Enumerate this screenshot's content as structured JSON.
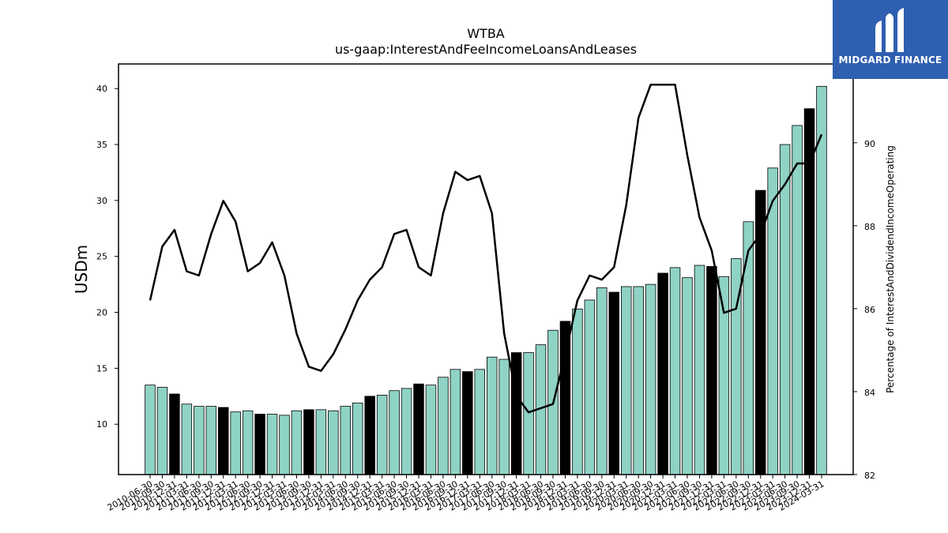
{
  "logo": {
    "text": "MIDGARD FINANCE",
    "icon": "midgard-logo-icon",
    "background": "#2f5fb0"
  },
  "chart_data": {
    "type": "bar",
    "title": "WTBA",
    "subtitle": "us-gaap:InterestAndFeeIncomeLoansAndLeases",
    "ylabel": "USDm",
    "y2label": "Percentage of InterestAndDividendIncomeOperating",
    "ylim": [
      5.5,
      42.2
    ],
    "y2lim": [
      82,
      91.9
    ],
    "yticks": [
      10,
      15,
      20,
      25,
      30,
      35,
      40
    ],
    "y2ticks": [
      82,
      84,
      86,
      88,
      90
    ],
    "grid": false,
    "colors": {
      "bar": "#8fd3c5",
      "bar_highlight": "#000000",
      "line": "#000000"
    },
    "categories": [
      "2010-06-30",
      "2010-09-30",
      "2010-12-31",
      "2011-03-31",
      "2011-06-30",
      "2011-09-30",
      "2011-12-31",
      "2012-03-31",
      "2012-06-30",
      "2012-09-30",
      "2012-12-31",
      "2013-03-31",
      "2013-06-30",
      "2013-09-30",
      "2013-12-31",
      "2014-03-31",
      "2014-06-30",
      "2014-09-30",
      "2014-12-31",
      "2015-03-31",
      "2015-06-30",
      "2015-09-30",
      "2015-12-31",
      "2016-03-31",
      "2016-06-30",
      "2016-09-30",
      "2016-12-31",
      "2017-03-31",
      "2017-06-30",
      "2017-09-30",
      "2017-12-31",
      "2018-03-31",
      "2018-06-30",
      "2018-09-30",
      "2018-12-31",
      "2019-03-31",
      "2019-06-30",
      "2019-09-30",
      "2019-12-31",
      "2020-03-31",
      "2020-06-30",
      "2020-09-30",
      "2020-12-31",
      "2021-03-31",
      "2021-06-30",
      "2021-09-30",
      "2021-12-31",
      "2022-03-31",
      "2022-06-30",
      "2022-09-30",
      "2022-12-31",
      "2023-03-31",
      "2023-06-30",
      "2023-09-30",
      "2023-12-31",
      "2024-03-31"
    ],
    "xtick_labels": [
      "2010-06-30",
      "2010-09-30",
      "2010-12-31",
      "2011-03-31",
      "2011-06-30",
      "2011-09-30",
      "2011-12-31",
      "2012-03-31",
      "2012-06-30",
      "2012-09-30",
      "2012-12-31",
      "2013-03-31",
      "2013-06-30",
      "2013-09-30",
      "2013-12-31",
      "2014-03-31",
      "2014-06-30",
      "2014-09-30",
      "2014-12-31",
      "2015-03-31",
      "2015-06-30",
      "2015-09-30",
      "2015-12-31",
      "2016-03-31",
      "2016-06-30",
      "2016-09-30",
      "2016-12-31",
      "2017-03-31",
      "2017-06-30",
      "2017-09-30",
      "2017-12-31",
      "2018-03-31",
      "2018-06-30",
      "2018-09-30",
      "2018-12-31",
      "2019-03-31",
      "2019-06-30",
      "2019-09-30",
      "2019-12-31",
      "2020-03-31",
      "2020-06-30",
      "2020-09-30",
      "2020-12-31",
      "2021-03-31",
      "2021-06-30",
      "2021-09-30",
      "2021-12-31",
      "2022-03-31",
      "2022-06-30",
      "2022-09-30",
      "2022-12-31",
      "2023-03-31",
      "2023-06-30",
      "2023-09-30",
      "2023-12-31",
      "2024-03-31"
    ],
    "bars": [
      13.5,
      13.3,
      12.7,
      11.8,
      11.6,
      11.6,
      11.5,
      11.1,
      11.2,
      10.9,
      10.9,
      10.8,
      11.2,
      11.3,
      11.3,
      11.2,
      11.6,
      11.9,
      12.5,
      12.6,
      13.0,
      13.2,
      13.6,
      13.5,
      14.2,
      14.9,
      14.7,
      14.9,
      16.0,
      15.8,
      16.4,
      16.4,
      17.1,
      18.4,
      19.2,
      20.3,
      21.1,
      22.2,
      21.8,
      22.3,
      22.3,
      22.5,
      23.5,
      24.0,
      23.1,
      24.2,
      24.1,
      23.2,
      24.8,
      28.1,
      30.9,
      32.9,
      35.0,
      36.7,
      38.2,
      40.2
    ],
    "highlight": [
      false,
      false,
      true,
      false,
      false,
      false,
      true,
      false,
      false,
      true,
      false,
      false,
      false,
      true,
      false,
      false,
      false,
      false,
      true,
      false,
      false,
      false,
      true,
      false,
      false,
      false,
      true,
      false,
      false,
      false,
      true,
      false,
      false,
      false,
      true,
      false,
      false,
      false,
      true,
      false,
      false,
      false,
      true,
      false,
      false,
      false,
      true,
      false,
      false,
      false,
      true,
      false,
      false,
      false,
      true,
      false
    ],
    "line_series": {
      "name": "",
      "axis": "right",
      "values": [
        86.2,
        87.5,
        87.9,
        86.9,
        86.8,
        87.8,
        88.6,
        88.1,
        86.9,
        87.1,
        87.6,
        86.8,
        85.4,
        84.6,
        84.5,
        84.9,
        85.5,
        86.2,
        86.7,
        87.0,
        87.8,
        87.9,
        87.0,
        86.8,
        88.3,
        89.3,
        89.1,
        89.2,
        88.3,
        85.4,
        83.9,
        83.5,
        83.6,
        83.7,
        84.9,
        86.2,
        86.8,
        86.7,
        87.0,
        88.5,
        90.6,
        91.4,
        91.4,
        91.4,
        89.7,
        88.2,
        87.4,
        85.9,
        86.0,
        87.4,
        87.8,
        88.6,
        89.0,
        89.5,
        89.5,
        90.2
      ]
    }
  }
}
